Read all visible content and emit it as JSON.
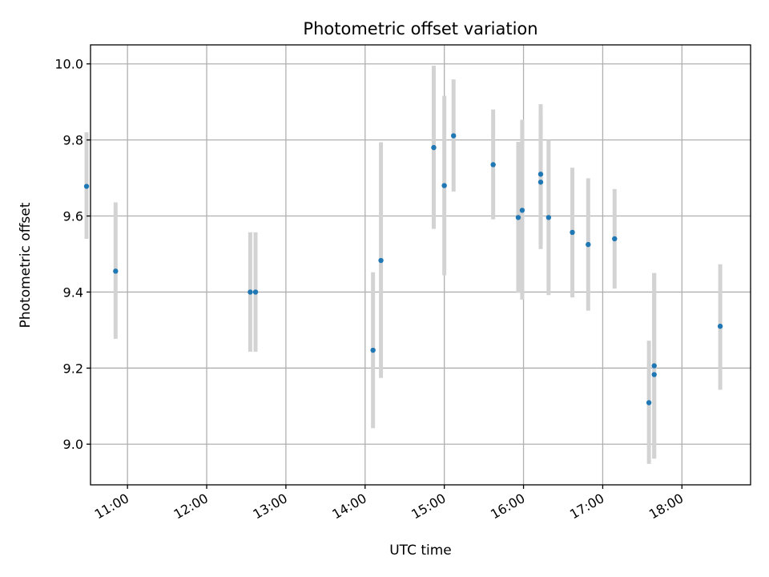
{
  "chart_data": {
    "type": "scatter",
    "title": "Photometric offset variation",
    "xlabel": "UTC time",
    "ylabel": "Photometric offset",
    "xlim": [
      "10:32",
      "18:52"
    ],
    "ylim": [
      8.893,
      10.05
    ],
    "grid": true,
    "x_ticks": [
      "11:00",
      "12:00",
      "13:00",
      "14:00",
      "15:00",
      "16:00",
      "17:00",
      "18:00"
    ],
    "y_ticks": [
      "9.0",
      "9.2",
      "9.4",
      "9.6",
      "9.8",
      "10.0"
    ],
    "colors": {
      "point": "#1f77b4",
      "error_bar": "#d3d3d3",
      "grid": "#b0b0b0"
    },
    "series": [
      {
        "points": [
          {
            "x": "10:29",
            "y": 9.678,
            "ylow": 9.54,
            "yhigh": 9.82
          },
          {
            "x": "10:51",
            "y": 9.455,
            "ylow": 9.277,
            "yhigh": 9.636
          },
          {
            "x": "12:33",
            "y": 9.4,
            "ylow": 9.243,
            "yhigh": 9.557
          },
          {
            "x": "12:37",
            "y": 9.4,
            "ylow": 9.243,
            "yhigh": 9.557
          },
          {
            "x": "14:06",
            "y": 9.247,
            "ylow": 9.042,
            "yhigh": 9.452
          },
          {
            "x": "14:12",
            "y": 9.483,
            "ylow": 9.174,
            "yhigh": 9.794
          },
          {
            "x": "14:52",
            "y": 9.78,
            "ylow": 9.566,
            "yhigh": 9.995
          },
          {
            "x": "15:00",
            "y": 9.68,
            "ylow": 9.444,
            "yhigh": 9.916
          },
          {
            "x": "15:07",
            "y": 9.811,
            "ylow": 9.664,
            "yhigh": 9.959
          },
          {
            "x": "15:37",
            "y": 9.735,
            "ylow": 9.591,
            "yhigh": 9.88
          },
          {
            "x": "15:56",
            "y": 9.596,
            "ylow": 9.398,
            "yhigh": 9.795
          },
          {
            "x": "15:59",
            "y": 9.615,
            "ylow": 9.38,
            "yhigh": 9.853
          },
          {
            "x": "16:13",
            "y": 9.71,
            "ylow": 9.525,
            "yhigh": 9.894
          },
          {
            "x": "16:13",
            "y": 9.689,
            "ylow": 9.513,
            "yhigh": 9.866
          },
          {
            "x": "16:19",
            "y": 9.596,
            "ylow": 9.392,
            "yhigh": 9.8
          },
          {
            "x": "16:37",
            "y": 9.557,
            "ylow": 9.386,
            "yhigh": 9.727
          },
          {
            "x": "16:49",
            "y": 9.525,
            "ylow": 9.351,
            "yhigh": 9.699
          },
          {
            "x": "17:09",
            "y": 9.54,
            "ylow": 9.409,
            "yhigh": 9.671
          },
          {
            "x": "17:35",
            "y": 9.109,
            "ylow": 8.948,
            "yhigh": 9.272
          },
          {
            "x": "17:39",
            "y": 9.206,
            "ylow": 8.962,
            "yhigh": 9.45
          },
          {
            "x": "17:39",
            "y": 9.183,
            "ylow": 8.962,
            "yhigh": 9.45
          },
          {
            "x": "18:29",
            "y": 9.31,
            "ylow": 9.143,
            "yhigh": 9.473
          }
        ]
      }
    ]
  }
}
